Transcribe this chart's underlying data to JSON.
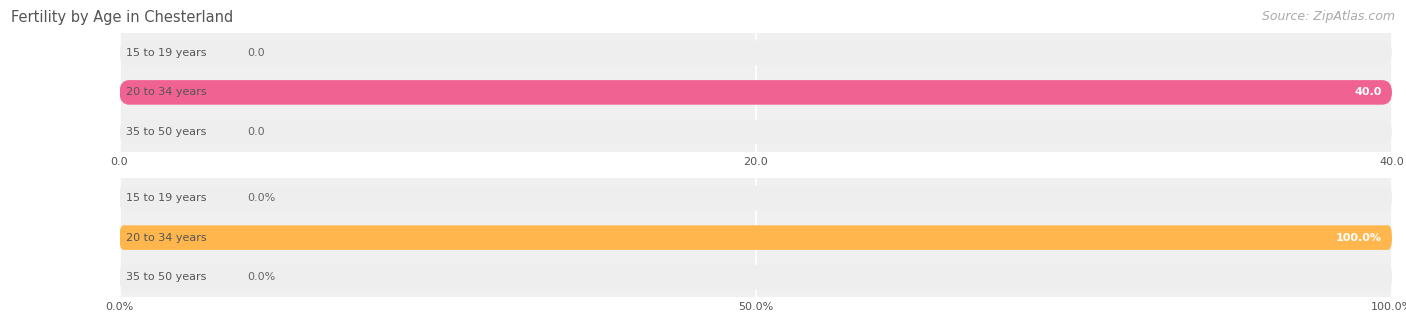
{
  "title": "Fertility by Age in Chesterland",
  "source": "Source: ZipAtlas.com",
  "top_chart": {
    "categories": [
      "15 to 19 years",
      "20 to 34 years",
      "35 to 50 years"
    ],
    "values": [
      0.0,
      40.0,
      0.0
    ],
    "xlim": [
      0,
      40.0
    ],
    "xticks": [
      0.0,
      20.0,
      40.0
    ],
    "xtick_labels": [
      "0.0",
      "20.0",
      "40.0"
    ],
    "bar_color": "#f06292",
    "bar_bg_color": "#eeeeee",
    "label_inside_color": "#ffffff",
    "label_outside_color": "#666666",
    "value_threshold": 35
  },
  "bottom_chart": {
    "categories": [
      "15 to 19 years",
      "20 to 34 years",
      "35 to 50 years"
    ],
    "values": [
      0.0,
      100.0,
      0.0
    ],
    "xlim": [
      0,
      100.0
    ],
    "xticks": [
      0.0,
      50.0,
      100.0
    ],
    "xtick_labels": [
      "0.0%",
      "50.0%",
      "100.0%"
    ],
    "bar_color": "#ffb74d",
    "bar_bg_color": "#eeeeee",
    "label_inside_color": "#ffffff",
    "label_outside_color": "#666666",
    "value_threshold": 90
  },
  "fig_bg_color": "#ffffff",
  "title_color": "#555555",
  "source_color": "#aaaaaa",
  "title_fontsize": 10.5,
  "source_fontsize": 9,
  "label_fontsize": 8,
  "tick_fontsize": 8,
  "bar_height": 0.62,
  "cat_label_color": "#555555",
  "cat_label_fontsize": 8
}
